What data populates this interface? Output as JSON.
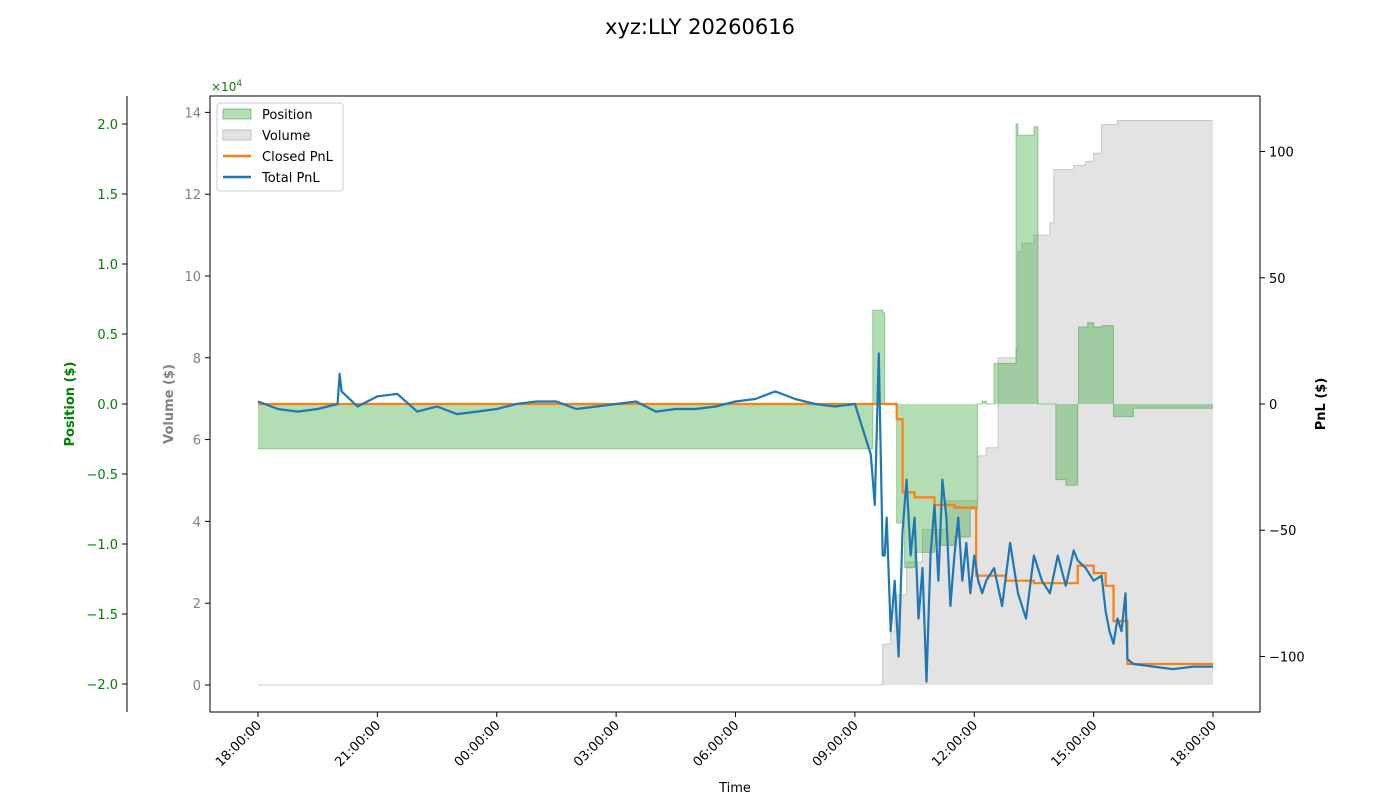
{
  "chart_data": {
    "type": "area",
    "title": "xyz:LLY 20260616",
    "xlabel": "Time",
    "x_ticks": [
      "18:00:00",
      "21:00:00",
      "00:00:00",
      "03:00:00",
      "06:00:00",
      "09:00:00",
      "12:00:00",
      "15:00:00",
      "18:00:00"
    ],
    "x_range_hours": [
      0,
      24
    ],
    "axes": {
      "position": {
        "label": "Position ($)",
        "ylim": [
          -2.2,
          2.2
        ],
        "ticks": [
          2.0,
          1.5,
          1.0,
          0.5,
          0.0,
          -0.5,
          -1.0,
          -1.5,
          -2.0
        ],
        "tick_labels": [
          "2.0",
          "1.5",
          "1.0",
          "0.5",
          "0.0",
          "−0.5",
          "−1.0",
          "−1.5",
          "−2.0"
        ],
        "scale_text": "×10",
        "scale_exp": "4",
        "color": "#008000"
      },
      "volume": {
        "label": "Volume ($)",
        "ylim": [
          -0.66,
          14.4
        ],
        "ticks": [
          14,
          12,
          10,
          8,
          6,
          4,
          2,
          0
        ],
        "color": "#808080"
      },
      "pnl": {
        "label": "PnL ($)",
        "ylim": [
          -122,
          122
        ],
        "ticks": [
          100,
          50,
          0,
          -50,
          -100
        ],
        "tick_labels": [
          "100",
          "50",
          "0",
          "−50",
          "−100"
        ],
        "color": "#000000"
      }
    },
    "legend": {
      "placement": "top-left",
      "entries": [
        "Position",
        "Volume",
        "Closed PnL",
        "Total PnL"
      ]
    },
    "colors": {
      "position": "#2ca02c",
      "volume": "#c8c8c8",
      "closed_pnl": "#ff7f0e",
      "total_pnl": "#1f77b4"
    },
    "series": [
      {
        "name": "Position",
        "axis": "position",
        "unit": "x10^4 $",
        "step": true,
        "x": [
          0,
          15.45,
          15.7,
          15.75,
          16.05,
          16.25,
          16.5,
          17,
          17.5,
          17.9,
          18.08,
          18.2,
          18.3,
          18.5,
          19.05,
          19.1,
          19.4,
          19.5,
          19.6,
          20.05,
          20.3,
          20.6,
          20.62,
          20.75,
          20.85,
          21.0,
          21.2,
          21.3,
          21.5,
          22.0,
          24.0
        ],
        "y": [
          -0.32,
          0.67,
          0.65,
          0.0,
          -0.85,
          -1.17,
          -1.06,
          -1.01,
          -0.95,
          -0.75,
          0.0,
          0.02,
          0.0,
          0.29,
          2.0,
          1.92,
          1.92,
          1.98,
          0.0,
          -0.54,
          -0.58,
          0.0,
          0.55,
          0.55,
          0.58,
          0.55,
          0.56,
          0.56,
          -0.09,
          -0.03,
          -0.03
        ]
      },
      {
        "name": "Volume",
        "axis": "volume",
        "unit": "x10^4 $",
        "step": true,
        "x": [
          0,
          15.7,
          15.9,
          16.0,
          16.3,
          16.7,
          17.3,
          18.1,
          18.3,
          18.6,
          19.05,
          19.1,
          19.2,
          19.5,
          19.9,
          20.0,
          20.5,
          20.8,
          21.0,
          21.2,
          21.6,
          24.0
        ],
        "y": [
          0,
          1.0,
          1.3,
          2.2,
          3.0,
          3.8,
          4.5,
          5.6,
          5.8,
          8.0,
          8.2,
          10.6,
          10.8,
          11.0,
          11.3,
          12.6,
          12.7,
          12.8,
          13.0,
          13.7,
          13.8,
          13.8
        ]
      },
      {
        "name": "Closed PnL",
        "axis": "pnl",
        "unit": "$",
        "step": true,
        "x": [
          0,
          16.05,
          16.2,
          16.5,
          17.0,
          17.5,
          18.05,
          18.8,
          19.5,
          20.6,
          21.0,
          21.3,
          21.5,
          21.85,
          24.0
        ],
        "y": [
          0,
          -6,
          -35,
          -37,
          -40,
          -41,
          -68,
          -70,
          -71,
          -64,
          -67,
          -72,
          -86,
          -103,
          -103
        ]
      },
      {
        "name": "Total PnL",
        "axis": "pnl",
        "unit": "$",
        "step": false,
        "x": [
          0,
          0.5,
          1.0,
          1.5,
          2.0,
          2.05,
          2.1,
          2.5,
          3.0,
          3.5,
          4.0,
          4.5,
          5.0,
          5.5,
          6.0,
          6.5,
          7.0,
          7.5,
          8.0,
          8.5,
          9.0,
          9.5,
          10.0,
          10.5,
          11.0,
          11.5,
          12.0,
          12.5,
          13.0,
          13.5,
          14.0,
          14.5,
          15.0,
          15.4,
          15.5,
          15.6,
          15.7,
          15.75,
          15.8,
          15.9,
          16.0,
          16.1,
          16.2,
          16.3,
          16.4,
          16.5,
          16.6,
          16.7,
          16.8,
          16.9,
          17.0,
          17.1,
          17.2,
          17.3,
          17.4,
          17.5,
          17.6,
          17.7,
          17.8,
          17.9,
          18.0,
          18.1,
          18.2,
          18.3,
          18.5,
          18.7,
          18.9,
          19.1,
          19.3,
          19.5,
          19.7,
          19.9,
          20.1,
          20.3,
          20.5,
          20.6,
          20.8,
          21.0,
          21.2,
          21.3,
          21.4,
          21.5,
          21.6,
          21.7,
          21.8,
          21.85,
          22.0,
          22.5,
          23.0,
          23.5,
          24.0
        ],
        "y": [
          1,
          -2,
          -3,
          -2,
          0,
          12,
          5,
          -1,
          3,
          4,
          -3,
          -1,
          -4,
          -3,
          -2,
          0,
          1,
          1,
          -2,
          -1,
          0,
          1,
          -3,
          -2,
          -2,
          -1,
          1,
          2,
          5,
          2,
          0,
          -1,
          0,
          -20,
          -40,
          20,
          -60,
          -60,
          -45,
          -90,
          -70,
          -100,
          -50,
          -30,
          -60,
          -45,
          -85,
          -65,
          -110,
          -60,
          -40,
          -70,
          -30,
          -45,
          -80,
          -60,
          -45,
          -70,
          -55,
          -75,
          -60,
          -70,
          -75,
          -70,
          -65,
          -80,
          -55,
          -75,
          -85,
          -60,
          -70,
          -75,
          -60,
          -72,
          -58,
          -62,
          -65,
          -70,
          -68,
          -82,
          -90,
          -95,
          -85,
          -90,
          -75,
          -101,
          -103,
          -104,
          -105,
          -104,
          -104
        ]
      }
    ]
  }
}
